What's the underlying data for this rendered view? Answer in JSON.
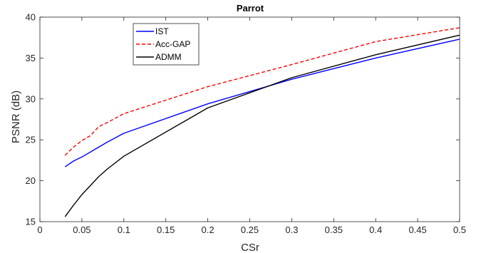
{
  "chart_data": {
    "type": "line",
    "title": "Parrot",
    "xlabel": "CSr",
    "ylabel": "PSNR (dB)",
    "xlim": [
      0,
      0.5
    ],
    "ylim": [
      15,
      40
    ],
    "xticks": [
      0,
      0.05,
      0.1,
      0.15,
      0.2,
      0.25,
      0.3,
      0.35,
      0.4,
      0.45,
      0.5
    ],
    "xtick_labels": [
      "0",
      "0.05",
      "0.1",
      "0.15",
      "0.2",
      "0.25",
      "0.3",
      "0.35",
      "0.4",
      "0.45",
      "0.5"
    ],
    "yticks": [
      15,
      20,
      25,
      30,
      35,
      40
    ],
    "ytick_labels": [
      "15",
      "20",
      "25",
      "30",
      "35",
      "40"
    ],
    "grid": false,
    "legend_position": "top-left",
    "series": [
      {
        "name": "IST",
        "color": "#0000ff",
        "dash": "solid",
        "x": [
          0.03,
          0.04,
          0.05,
          0.07,
          0.08,
          0.1,
          0.2,
          0.3,
          0.4,
          0.5
        ],
        "y": [
          21.7,
          22.4,
          22.9,
          24.1,
          24.7,
          25.8,
          29.4,
          32.4,
          35.0,
          37.3
        ]
      },
      {
        "name": "Acc-GAP",
        "color": "#ff0000",
        "dash": "dashed",
        "x": [
          0.03,
          0.04,
          0.05,
          0.06,
          0.07,
          0.08,
          0.1,
          0.2,
          0.3,
          0.4,
          0.5
        ],
        "y": [
          23.1,
          24.1,
          24.9,
          25.5,
          26.6,
          27.1,
          28.2,
          31.5,
          34.2,
          37.0,
          38.7
        ]
      },
      {
        "name": "ADMM",
        "color": "#000000",
        "dash": "solid",
        "x": [
          0.03,
          0.04,
          0.05,
          0.06,
          0.07,
          0.08,
          0.1,
          0.2,
          0.3,
          0.4,
          0.5
        ],
        "y": [
          15.6,
          17.0,
          18.3,
          19.4,
          20.5,
          21.4,
          23.0,
          28.9,
          32.6,
          35.4,
          37.8
        ]
      }
    ]
  }
}
